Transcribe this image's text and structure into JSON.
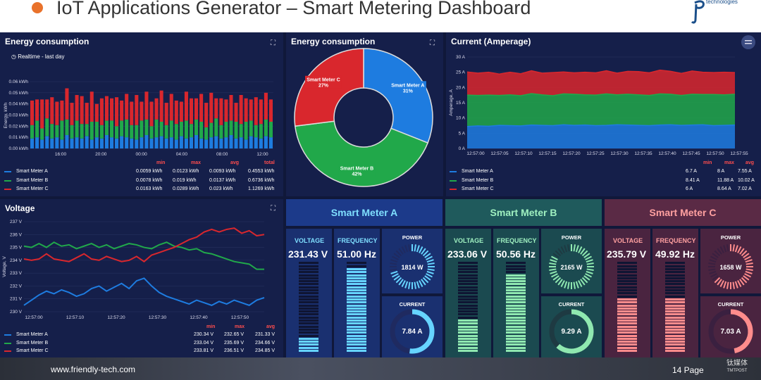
{
  "slide": {
    "title": "IoT Applications Generator – Smart Metering Dashboard",
    "logo_text": "technologies",
    "footer_url": "www.friendly-tech.com",
    "page": "14 Page",
    "watermark_cn": "钛媒体",
    "watermark_en": "TMTPOST"
  },
  "colors": {
    "a": "#1e7ce0",
    "b": "#21a84a",
    "c": "#d9272d",
    "bg": "#10183a",
    "panel": "#151f4a"
  },
  "energy_bar": {
    "title": "Energy consumption",
    "subtitle": "Realtime - last day",
    "legend_headers": [
      "min",
      "max",
      "avg",
      "total"
    ],
    "rows": [
      {
        "name": "Smart Meter A",
        "min": "0.0059 kWh",
        "max": "0.0123 kWh",
        "avg": "0.0093 kWh",
        "total": "0.4553 kWh"
      },
      {
        "name": "Smart Meter B",
        "min": "0.0078 kWh",
        "max": "0.019 kWh",
        "avg": "0.0137 kWh",
        "total": "0.6736 kWh"
      },
      {
        "name": "Smart Meter C",
        "min": "0.0163 kWh",
        "max": "0.0289 kWh",
        "avg": "0.023 kWh",
        "total": "1.1269 kWh"
      }
    ]
  },
  "energy_pie": {
    "title": "Energy consumption"
  },
  "current": {
    "title": "Current (Amperage)",
    "legend_headers": [
      "min",
      "max",
      "avg"
    ],
    "rows": [
      {
        "name": "Smart Meter A",
        "min": "6.7 A",
        "max": "8 A",
        "avg": "7.55 A"
      },
      {
        "name": "Smart Meter B",
        "min": "8.41 A",
        "max": "11.88 A",
        "avg": "10.02 A"
      },
      {
        "name": "Smart Meter C",
        "min": "6 A",
        "max": "8.64 A",
        "avg": "7.02 A"
      }
    ]
  },
  "voltage": {
    "title": "Voltage",
    "legend_headers": [
      "min",
      "max",
      "avg"
    ],
    "rows": [
      {
        "name": "Smart Meter A",
        "min": "230.34 V",
        "max": "232.65 V",
        "avg": "231.33 V"
      },
      {
        "name": "Smart Meter B",
        "min": "233.04 V",
        "max": "235.69 V",
        "avg": "234.66 V"
      },
      {
        "name": "Smart Meter C",
        "min": "233.81 V",
        "max": "236.51 V",
        "avg": "234.85 V"
      }
    ]
  },
  "meters": [
    {
      "name": "Smart Meter A",
      "voltage_label": "VOLTAGE",
      "voltage": "231.43 V",
      "freq_label": "FREQUENCY",
      "freq": "51.00 Hz",
      "power_label": "POWER",
      "power": "1814 W",
      "current_label": "CURRENT",
      "current": "7.84 A",
      "volt_level": 0.18,
      "freq_level": 0.93,
      "power_level": 0.72,
      "current_level": 0.52,
      "theme": "a"
    },
    {
      "name": "Smart Meter B",
      "voltage_label": "VOLTAGE",
      "voltage": "233.06 V",
      "freq_label": "FREQUENCY",
      "freq": "50.56 Hz",
      "power_label": "POWER",
      "power": "2165 W",
      "current_label": "CURRENT",
      "current": "9.29 A",
      "volt_level": 0.36,
      "freq_level": 0.86,
      "power_level": 0.86,
      "current_level": 0.62,
      "theme": "b"
    },
    {
      "name": "Smart Meter C",
      "voltage_label": "VOLTAGE",
      "voltage": "235.79 V",
      "freq_label": "FREQUENCY",
      "freq": "49.92 Hz",
      "power_label": "POWER",
      "power": "1658 W",
      "current_label": "CURRENT",
      "current": "7.03 A",
      "volt_level": 0.6,
      "freq_level": 0.6,
      "power_level": 0.66,
      "current_level": 0.47,
      "theme": "c"
    }
  ],
  "chart_data": [
    {
      "type": "bar",
      "title": "Energy consumption",
      "ylabel": "Energy, kWh",
      "ylim": [
        0,
        0.06
      ],
      "y_ticks": [
        "0.00 kWh",
        "0.01 kWh",
        "0.02 kWh",
        "0.03 kWh",
        "0.04 kWh",
        "0.05 kWh",
        "0.06 kWh"
      ],
      "x_ticks": [
        "16:00",
        "20:00",
        "00:00",
        "04:00",
        "08:00",
        "12:00"
      ],
      "series": [
        {
          "name": "Smart Meter A",
          "values": [
            0.009,
            0.01,
            0.008,
            0.011,
            0.009,
            0.01,
            0.008,
            0.012,
            0.009,
            0.01,
            0.009,
            0.011,
            0.008,
            0.01,
            0.009,
            0.012,
            0.01,
            0.009,
            0.011,
            0.01,
            0.009,
            0.008,
            0.01,
            0.012,
            0.009,
            0.01,
            0.011,
            0.009,
            0.01,
            0.008,
            0.011,
            0.009,
            0.01,
            0.012,
            0.009,
            0.008,
            0.01,
            0.011,
            0.009,
            0.01,
            0.012,
            0.009,
            0.01,
            0.008,
            0.011,
            0.01,
            0.009,
            0.011,
            0.01
          ]
        },
        {
          "name": "Smart Meter B",
          "values": [
            0.012,
            0.015,
            0.01,
            0.016,
            0.013,
            0.011,
            0.017,
            0.014,
            0.012,
            0.015,
            0.013,
            0.011,
            0.016,
            0.014,
            0.012,
            0.013,
            0.015,
            0.011,
            0.014,
            0.016,
            0.012,
            0.013,
            0.015,
            0.014,
            0.011,
            0.016,
            0.013,
            0.012,
            0.015,
            0.014,
            0.013,
            0.016,
            0.012,
            0.014,
            0.015,
            0.011,
            0.013,
            0.016,
            0.012,
            0.014,
            0.013,
            0.015,
            0.012,
            0.016,
            0.014,
            0.011,
            0.013,
            0.015,
            0.014
          ]
        },
        {
          "name": "Smart Meter C",
          "values": [
            0.022,
            0.019,
            0.026,
            0.017,
            0.024,
            0.021,
            0.018,
            0.028,
            0.02,
            0.023,
            0.025,
            0.019,
            0.027,
            0.016,
            0.024,
            0.022,
            0.02,
            0.026,
            0.018,
            0.023,
            0.021,
            0.027,
            0.017,
            0.025,
            0.022,
            0.019,
            0.028,
            0.02,
            0.024,
            0.021,
            0.018,
            0.026,
            0.023,
            0.019,
            0.025,
            0.022,
            0.027,
            0.018,
            0.024,
            0.02,
            0.023,
            0.017,
            0.026,
            0.021,
            0.019,
            0.025,
            0.022,
            0.024,
            0.02
          ]
        }
      ]
    },
    {
      "type": "pie",
      "title": "Energy consumption",
      "slices": [
        {
          "name": "Smart Meter A",
          "value": 31
        },
        {
          "name": "Smart Meter B",
          "value": 42
        },
        {
          "name": "Smart Meter C",
          "value": 27
        }
      ]
    },
    {
      "type": "area",
      "title": "Current (Amperage)",
      "ylabel": "Amperage, A",
      "ylim": [
        0,
        30
      ],
      "y_ticks": [
        "0 A",
        "5 A",
        "10 A",
        "15 A",
        "20 A",
        "25 A",
        "30 A"
      ],
      "x_ticks": [
        "12:57:00",
        "12:57:05",
        "12:57:10",
        "12:57:15",
        "12:57:20",
        "12:57:25",
        "12:57:30",
        "12:57:35",
        "12:57:40",
        "12:57:45",
        "12:57:50",
        "12:57:55"
      ],
      "series": [
        {
          "name": "Smart Meter A",
          "values": [
            7.2,
            7.4,
            7.3,
            7.6,
            7.5,
            7.4,
            7.7,
            7.6,
            7.5,
            7.8,
            7.6,
            7.7,
            7.5,
            7.6,
            7.8,
            7.7,
            7.6,
            7.5,
            7.7,
            7.8,
            7.6,
            7.7,
            7.8,
            7.5,
            7.6,
            7.7
          ]
        },
        {
          "name": "Smart Meter B",
          "values": [
            10.3,
            10.0,
            10.2,
            9.8,
            10.1,
            9.9,
            10.3,
            10.0,
            9.8,
            10.1,
            10.2,
            9.9,
            10.0,
            10.3,
            9.8,
            10.1,
            10.0,
            9.9,
            10.2,
            10.0,
            9.8,
            10.1,
            9.9,
            10.2,
            10.0,
            10.1
          ]
        },
        {
          "name": "Smart Meter C",
          "values": [
            7.6,
            7.3,
            7.5,
            7.0,
            7.4,
            7.2,
            7.5,
            7.1,
            7.6,
            7.2,
            7.0,
            7.4,
            7.3,
            7.6,
            7.1,
            7.5,
            7.6,
            7.4,
            7.8,
            7.5,
            7.2,
            7.6,
            7.3,
            7.2,
            7.4,
            7.1
          ]
        }
      ]
    },
    {
      "type": "line",
      "title": "Voltage",
      "ylabel": "Voltage, V",
      "ylim": [
        230,
        237
      ],
      "y_ticks": [
        "230 V",
        "231 V",
        "232 V",
        "233 V",
        "234 V",
        "235 V",
        "236 V",
        "237 V"
      ],
      "x_ticks": [
        "12:57:00",
        "12:57:10",
        "12:57:20",
        "12:57:30",
        "12:57:40",
        "12:57:50"
      ],
      "series": [
        {
          "name": "Smart Meter A",
          "values": [
            230.5,
            230.9,
            231.3,
            231.6,
            231.4,
            231.7,
            231.5,
            231.2,
            231.4,
            231.8,
            232.0,
            231.6,
            231.9,
            232.2,
            231.8,
            232.4,
            232.6,
            232.0,
            231.5,
            231.2,
            231.0,
            230.8,
            230.6,
            230.9,
            230.7,
            230.5,
            230.8,
            230.6,
            230.9,
            230.7,
            230.5,
            230.9,
            231.1
          ]
        },
        {
          "name": "Smart Meter B",
          "values": [
            235.1,
            235.0,
            235.3,
            235.0,
            235.4,
            235.1,
            235.2,
            234.9,
            235.1,
            235.3,
            235.0,
            235.2,
            234.9,
            235.1,
            235.3,
            235.2,
            235.0,
            234.9,
            235.2,
            235.4,
            235.1,
            235.0,
            234.8,
            234.9,
            234.6,
            234.5,
            234.3,
            234.1,
            233.9,
            233.8,
            233.7,
            233.3,
            233.3
          ]
        },
        {
          "name": "Smart Meter C",
          "values": [
            234.1,
            234.0,
            234.1,
            234.5,
            234.1,
            234.0,
            233.9,
            234.2,
            234.5,
            234.1,
            234.0,
            234.3,
            234.1,
            233.9,
            234.0,
            234.3,
            233.9,
            234.4,
            234.6,
            234.8,
            235.0,
            235.3,
            235.6,
            235.8,
            236.2,
            236.4,
            236.2,
            236.4,
            236.5,
            236.1,
            236.3,
            235.9,
            236.0
          ]
        }
      ]
    }
  ]
}
